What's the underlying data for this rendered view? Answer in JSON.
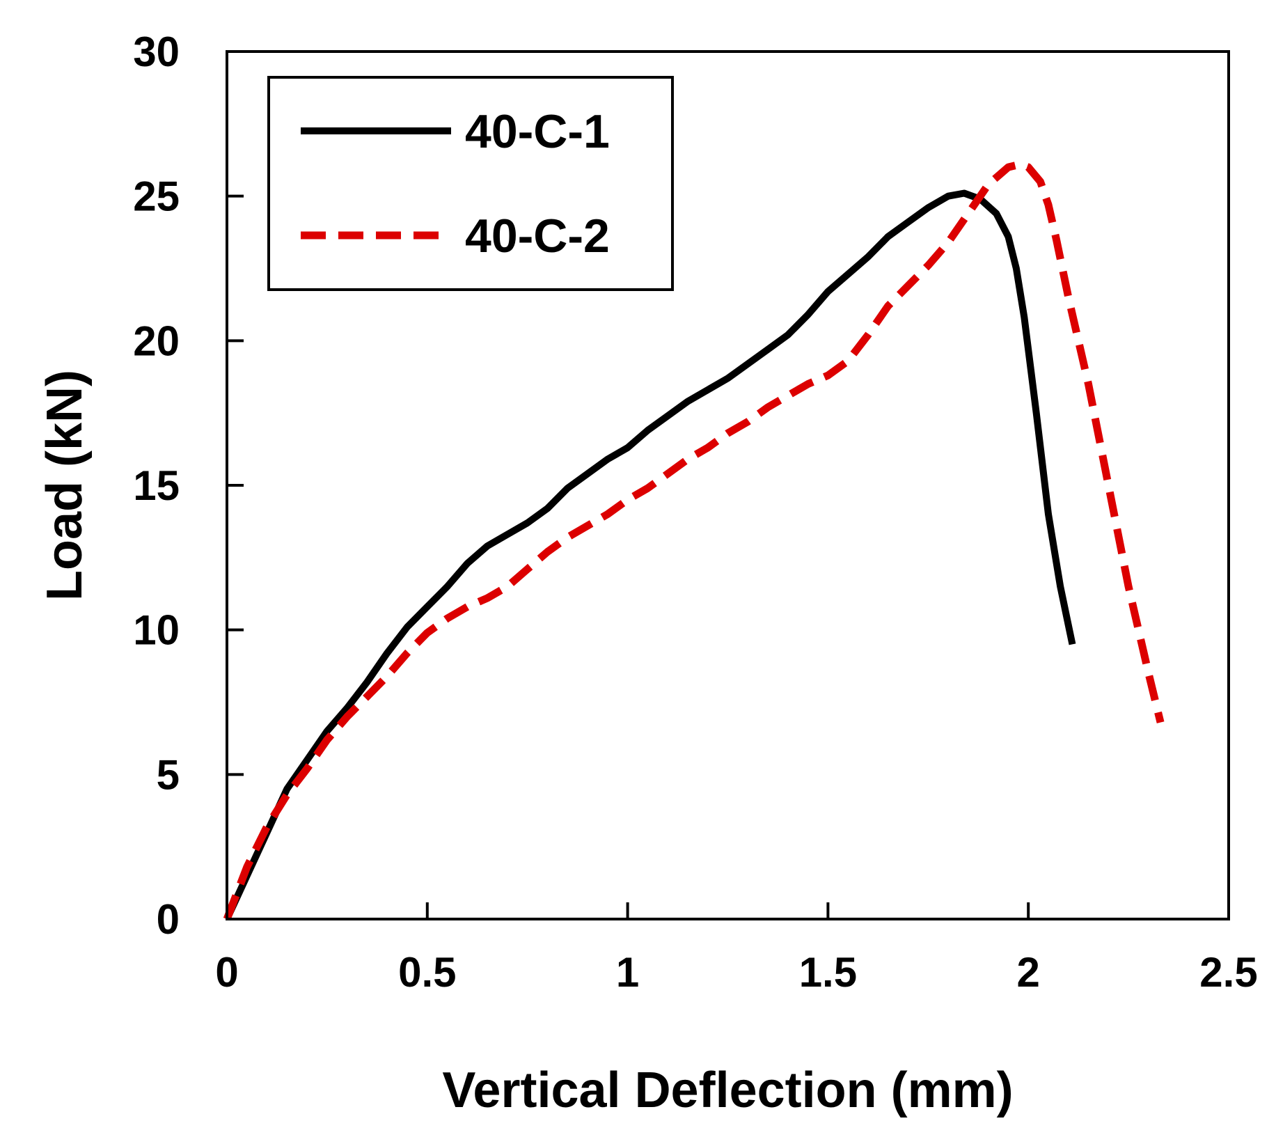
{
  "chart_data": {
    "type": "line",
    "xlabel": "Vertical Deflection (mm)",
    "ylabel": "Load (kN)",
    "xlim": [
      0,
      2.5
    ],
    "ylim": [
      0,
      30
    ],
    "xticks": [
      0,
      0.5,
      1,
      1.5,
      2,
      2.5
    ],
    "yticks": [
      0,
      5,
      10,
      15,
      20,
      25,
      30
    ],
    "xtick_labels": [
      "0",
      "0.5",
      "1",
      "1.5",
      "2",
      "2.5"
    ],
    "ytick_labels": [
      "0",
      "5",
      "10",
      "15",
      "20",
      "25",
      "30"
    ],
    "grid": false,
    "legend_position": "top-left",
    "series": [
      {
        "name": "40-C-1",
        "color": "#000000",
        "line_style": "solid",
        "points": [
          [
            0,
            0
          ],
          [
            0.05,
            1.5
          ],
          [
            0.1,
            3.0
          ],
          [
            0.15,
            4.5
          ],
          [
            0.2,
            5.5
          ],
          [
            0.25,
            6.5
          ],
          [
            0.3,
            7.3
          ],
          [
            0.35,
            8.2
          ],
          [
            0.4,
            9.2
          ],
          [
            0.45,
            10.1
          ],
          [
            0.5,
            10.8
          ],
          [
            0.55,
            11.5
          ],
          [
            0.6,
            12.3
          ],
          [
            0.65,
            12.9
          ],
          [
            0.7,
            13.3
          ],
          [
            0.75,
            13.7
          ],
          [
            0.8,
            14.2
          ],
          [
            0.85,
            14.9
          ],
          [
            0.9,
            15.4
          ],
          [
            0.95,
            15.9
          ],
          [
            1.0,
            16.3
          ],
          [
            1.05,
            16.9
          ],
          [
            1.1,
            17.4
          ],
          [
            1.15,
            17.9
          ],
          [
            1.2,
            18.3
          ],
          [
            1.25,
            18.7
          ],
          [
            1.3,
            19.2
          ],
          [
            1.35,
            19.7
          ],
          [
            1.4,
            20.2
          ],
          [
            1.45,
            20.9
          ],
          [
            1.5,
            21.7
          ],
          [
            1.55,
            22.3
          ],
          [
            1.6,
            22.9
          ],
          [
            1.65,
            23.6
          ],
          [
            1.7,
            24.1
          ],
          [
            1.75,
            24.6
          ],
          [
            1.8,
            25.0
          ],
          [
            1.84,
            25.1
          ],
          [
            1.88,
            24.9
          ],
          [
            1.92,
            24.4
          ],
          [
            1.95,
            23.6
          ],
          [
            1.97,
            22.5
          ],
          [
            1.99,
            20.8
          ],
          [
            2.02,
            17.5
          ],
          [
            2.05,
            14.0
          ],
          [
            2.08,
            11.5
          ],
          [
            2.11,
            9.5
          ]
        ]
      },
      {
        "name": "40-C-2",
        "color": "#dc0000",
        "line_style": "dashed",
        "points": [
          [
            0,
            0
          ],
          [
            0.05,
            1.8
          ],
          [
            0.1,
            3.2
          ],
          [
            0.15,
            4.3
          ],
          [
            0.2,
            5.2
          ],
          [
            0.25,
            6.2
          ],
          [
            0.3,
            7.0
          ],
          [
            0.35,
            7.7
          ],
          [
            0.4,
            8.4
          ],
          [
            0.45,
            9.2
          ],
          [
            0.5,
            9.9
          ],
          [
            0.55,
            10.4
          ],
          [
            0.6,
            10.8
          ],
          [
            0.65,
            11.1
          ],
          [
            0.7,
            11.5
          ],
          [
            0.75,
            12.1
          ],
          [
            0.8,
            12.7
          ],
          [
            0.85,
            13.2
          ],
          [
            0.9,
            13.6
          ],
          [
            0.95,
            14.0
          ],
          [
            1.0,
            14.5
          ],
          [
            1.05,
            14.9
          ],
          [
            1.1,
            15.4
          ],
          [
            1.15,
            15.9
          ],
          [
            1.2,
            16.3
          ],
          [
            1.25,
            16.8
          ],
          [
            1.3,
            17.2
          ],
          [
            1.35,
            17.7
          ],
          [
            1.4,
            18.1
          ],
          [
            1.45,
            18.5
          ],
          [
            1.5,
            18.8
          ],
          [
            1.55,
            19.3
          ],
          [
            1.6,
            20.2
          ],
          [
            1.65,
            21.2
          ],
          [
            1.7,
            21.9
          ],
          [
            1.75,
            22.6
          ],
          [
            1.8,
            23.4
          ],
          [
            1.85,
            24.4
          ],
          [
            1.9,
            25.4
          ],
          [
            1.95,
            26.0
          ],
          [
            1.98,
            26.1
          ],
          [
            2.0,
            26.0
          ],
          [
            2.03,
            25.5
          ],
          [
            2.05,
            24.7
          ],
          [
            2.07,
            23.5
          ],
          [
            2.1,
            21.5
          ],
          [
            2.15,
            18.5
          ],
          [
            2.2,
            15.0
          ],
          [
            2.25,
            11.5
          ],
          [
            2.3,
            8.5
          ],
          [
            2.33,
            6.8
          ]
        ]
      }
    ]
  }
}
